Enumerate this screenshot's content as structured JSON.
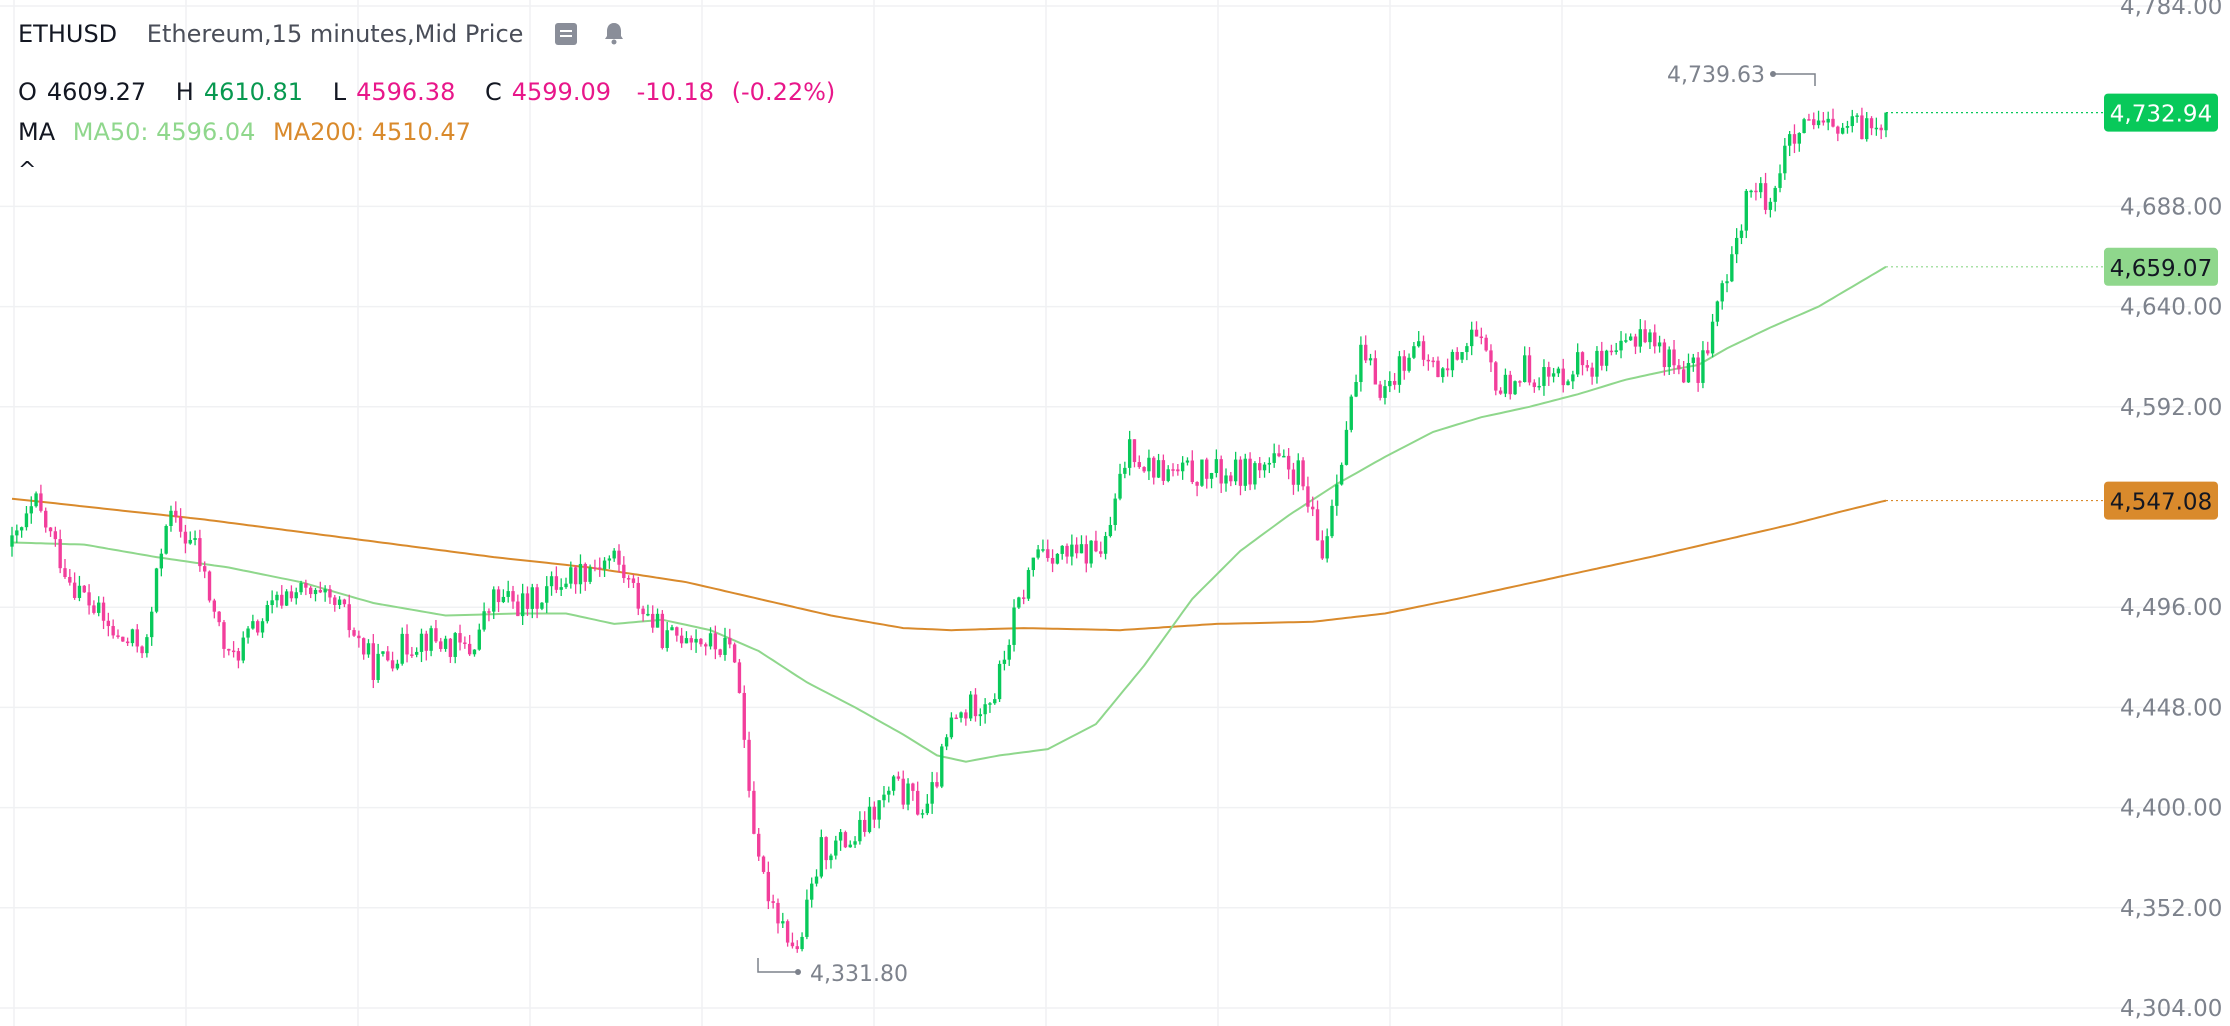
{
  "header": {
    "symbol": "ETHUSD",
    "description": "Ethereum,15 minutes,Mid Price",
    "o_label": "O",
    "o_value": "4609.27",
    "h_label": "H",
    "h_value": "4610.81",
    "l_label": "L",
    "l_value": "4596.38",
    "c_label": "C",
    "c_value": "4599.09",
    "change": "-10.18",
    "change_pct": "(-0.22%)",
    "ma_label": "MA",
    "ma50_text": "MA50: 4596.04",
    "ma200_text": "MA200: 4510.47",
    "collapse_glyph": "^"
  },
  "icons": {
    "template": "data-window-icon",
    "alert": "bell-icon"
  },
  "colors": {
    "up": "#08c95a",
    "down": "#f23e9b",
    "ma50": "#8fd78c",
    "ma200": "#d98a2c",
    "last_price_badge": "#08c95a",
    "ma50_badge": "#8fd78c",
    "ma200_badge": "#d98a2c",
    "grid": "#f0f1f3",
    "axis_text": "#7d828c"
  },
  "chart_data": {
    "type": "candlestick",
    "title": "",
    "interval": "15 minutes",
    "ylim": [
      4304,
      4784
    ],
    "y_ticks": [
      "4,784.00",
      "4,688.00",
      "4,640.00",
      "4,592.00",
      "4,496.00",
      "4,448.00",
      "4,400.00",
      "4,352.00",
      "4,304.00"
    ],
    "y_tick_values": [
      4784,
      4688,
      4640,
      4592,
      4496,
      4448,
      4400,
      4352,
      4304
    ],
    "grid": true,
    "last_price": 4732.94,
    "last_price_label": "4,732.94",
    "ma50_last": 4659.07,
    "ma50_last_label": "4,659.07",
    "ma200_last": 4547.08,
    "ma200_last_label": "4,547.08",
    "high_marker": {
      "value": 4739.63,
      "label": "4,739.63"
    },
    "low_marker": {
      "value": 4331.8,
      "label": "4,331.80"
    },
    "anchors": [
      [
        0,
        4525
      ],
      [
        5,
        4545
      ],
      [
        12,
        4510
      ],
      [
        22,
        4480
      ],
      [
        28,
        4478
      ],
      [
        32,
        4540
      ],
      [
        38,
        4525
      ],
      [
        45,
        4470
      ],
      [
        52,
        4490
      ],
      [
        58,
        4505
      ],
      [
        68,
        4495
      ],
      [
        75,
        4468
      ],
      [
        85,
        4482
      ],
      [
        95,
        4475
      ],
      [
        100,
        4500
      ],
      [
        107,
        4497
      ],
      [
        113,
        4508
      ],
      [
        120,
        4516
      ],
      [
        125,
        4520
      ],
      [
        131,
        4495
      ],
      [
        136,
        4480
      ],
      [
        140,
        4485
      ],
      [
        145,
        4478
      ],
      [
        150,
        4475
      ],
      [
        155,
        4370
      ],
      [
        160,
        4345
      ],
      [
        163,
        4330
      ],
      [
        168,
        4380
      ],
      [
        175,
        4385
      ],
      [
        183,
        4410
      ],
      [
        190,
        4398
      ],
      [
        195,
        4440
      ],
      [
        200,
        4450
      ],
      [
        204,
        4455
      ],
      [
        208,
        4490
      ],
      [
        213,
        4525
      ],
      [
        220,
        4520
      ],
      [
        227,
        4525
      ],
      [
        232,
        4575
      ],
      [
        235,
        4565
      ],
      [
        240,
        4560
      ],
      [
        247,
        4560
      ],
      [
        255,
        4560
      ],
      [
        262,
        4565
      ],
      [
        267,
        4560
      ],
      [
        272,
        4520
      ],
      [
        275,
        4560
      ],
      [
        280,
        4615
      ],
      [
        285,
        4600
      ],
      [
        290,
        4620
      ],
      [
        297,
        4608
      ],
      [
        303,
        4628
      ],
      [
        309,
        4600
      ],
      [
        314,
        4610
      ],
      [
        320,
        4605
      ],
      [
        325,
        4614
      ],
      [
        332,
        4612
      ],
      [
        338,
        4630
      ],
      [
        345,
        4612
      ],
      [
        350,
        4608
      ],
      [
        354,
        4640
      ],
      [
        357,
        4660
      ],
      [
        360,
        4695
      ],
      [
        365,
        4692
      ],
      [
        368,
        4715
      ],
      [
        373,
        4725
      ],
      [
        377,
        4725
      ],
      [
        383,
        4725
      ],
      [
        387,
        4728
      ],
      [
        389,
        4732.94
      ]
    ],
    "ma50_path": [
      [
        0,
        4527
      ],
      [
        15,
        4526
      ],
      [
        30,
        4520
      ],
      [
        45,
        4515
      ],
      [
        60,
        4508
      ],
      [
        75,
        4498
      ],
      [
        90,
        4492
      ],
      [
        105,
        4493
      ],
      [
        115,
        4493
      ],
      [
        125,
        4488
      ],
      [
        135,
        4490
      ],
      [
        145,
        4485
      ],
      [
        155,
        4475
      ],
      [
        165,
        4460
      ],
      [
        175,
        4448
      ],
      [
        185,
        4435
      ],
      [
        192,
        4425
      ],
      [
        198,
        4422
      ],
      [
        205,
        4425
      ],
      [
        215,
        4428
      ],
      [
        225,
        4440
      ],
      [
        235,
        4468
      ],
      [
        245,
        4500
      ],
      [
        255,
        4523
      ],
      [
        265,
        4540
      ],
      [
        275,
        4555
      ],
      [
        285,
        4568
      ],
      [
        295,
        4580
      ],
      [
        305,
        4587
      ],
      [
        315,
        4592
      ],
      [
        325,
        4598
      ],
      [
        335,
        4605
      ],
      [
        345,
        4610
      ],
      [
        350,
        4612
      ],
      [
        356,
        4620
      ],
      [
        365,
        4630
      ],
      [
        375,
        4640
      ],
      [
        389,
        4659.07
      ]
    ],
    "ma200_path": [
      [
        0,
        4548
      ],
      [
        20,
        4543
      ],
      [
        40,
        4538
      ],
      [
        60,
        4532
      ],
      [
        80,
        4526
      ],
      [
        100,
        4520
      ],
      [
        120,
        4515
      ],
      [
        140,
        4508
      ],
      [
        155,
        4500
      ],
      [
        170,
        4492
      ],
      [
        185,
        4486
      ],
      [
        195,
        4485
      ],
      [
        210,
        4486
      ],
      [
        230,
        4485
      ],
      [
        250,
        4488
      ],
      [
        270,
        4489
      ],
      [
        285,
        4493
      ],
      [
        300,
        4500
      ],
      [
        320,
        4510
      ],
      [
        340,
        4520
      ],
      [
        355,
        4528
      ],
      [
        370,
        4536
      ],
      [
        380,
        4542
      ],
      [
        389,
        4547.08
      ]
    ],
    "n_candles": 390,
    "legend_placement": "top-left"
  }
}
